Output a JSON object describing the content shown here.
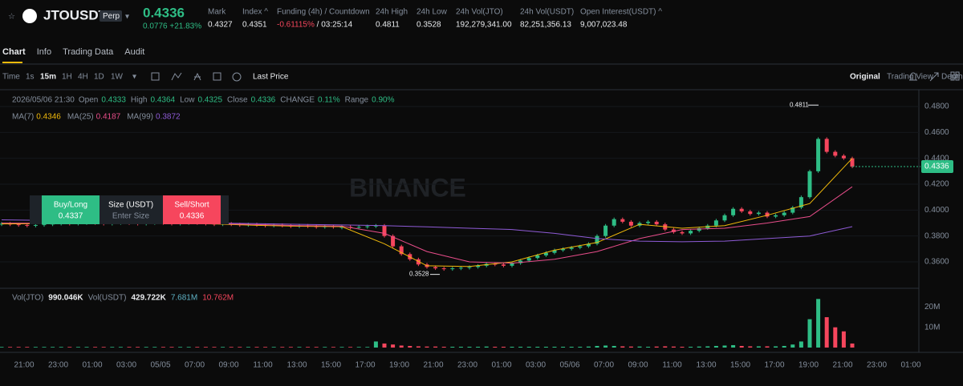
{
  "header": {
    "symbol": "JTOUSDT",
    "badge": "Perp",
    "price": "0.4336",
    "change": "0.0776 +21.83%",
    "stats": [
      {
        "label": "Mark",
        "value": "0.4327"
      },
      {
        "label": "Index ^",
        "value": "0.4351"
      },
      {
        "label": "Funding (4h) / Countdown",
        "value": "-0.61115%",
        "extra": " / 03:25:14"
      },
      {
        "label": "24h High",
        "value": "0.4811"
      },
      {
        "label": "24h Low",
        "value": "0.3528"
      },
      {
        "label": "24h Vol(JTO)",
        "value": "192,279,341.00"
      },
      {
        "label": "24h Vol(USDT)",
        "value": "82,251,356.13"
      },
      {
        "label": "Open Interest(USDT) ^",
        "value": "9,007,023.48"
      }
    ]
  },
  "tabs": [
    "Chart",
    "Info",
    "Trading Data",
    "Audit"
  ],
  "toolbar": {
    "intervals": [
      "Time",
      "1s",
      "15m",
      "1H",
      "4H",
      "1D",
      "1W"
    ],
    "price_mode": "Last Price",
    "views": [
      "Original",
      "Trading View",
      "Depth"
    ]
  },
  "ohlc_info": {
    "date": "2026/05/06 21:30",
    "items": [
      [
        "Open",
        "0.4333"
      ],
      [
        "High",
        "0.4364"
      ],
      [
        "Low",
        "0.4325"
      ],
      [
        "Close",
        "0.4336"
      ],
      [
        "CHANGE",
        "0.11%"
      ],
      [
        "Range",
        "0.90%"
      ]
    ]
  },
  "ma_legend": [
    {
      "name": "MA(7)",
      "value": "0.4346",
      "color": "#f0b90b"
    },
    {
      "name": "MA(25)",
      "value": "0.4187",
      "color": "#e84d8a"
    },
    {
      "name": "MA(99)",
      "value": "0.3872",
      "color": "#8e5bd6"
    }
  ],
  "vol_legend": {
    "name": "Vol(JTO)",
    "value": "990.046K",
    "name2": "Vol(USDT)",
    "value2": "429.722K",
    "ma1": "7.681M",
    "ma2": "10.762M"
  },
  "watermark": "BINANCE",
  "order_widget": {
    "buy": "Buy/Long",
    "buy_price": "0.4337",
    "size": "Size (USDT)",
    "size_hint": "Enter Size",
    "sell": "Sell/Short",
    "sell_price": "0.4336"
  },
  "chart": {
    "ylim": [
      0.3458,
      0.488
    ],
    "yticks": [
      {
        "value": 0.48,
        "label": "0.4800"
      },
      {
        "value": 0.46,
        "label": "0.4600"
      },
      {
        "value": 0.44,
        "label": "0.4400"
      },
      {
        "value": 0.42,
        "label": "0.4200"
      },
      {
        "value": 0.4,
        "label": "0.4000"
      },
      {
        "value": 0.38,
        "label": "0.3800"
      },
      {
        "value": 0.36,
        "label": "0.3600"
      }
    ],
    "last_price": "0.4336",
    "high_label": "0.4811",
    "low_label": "0.3528",
    "closes": [
      0.3895,
      0.389,
      0.3885,
      0.388,
      0.3885,
      0.389,
      0.3895,
      0.39,
      0.3895,
      0.39,
      0.3905,
      0.39,
      0.3895,
      0.39,
      0.3905,
      0.39,
      0.3895,
      0.39,
      0.3905,
      0.39,
      0.3895,
      0.39,
      0.3905,
      0.39,
      0.3895,
      0.389,
      0.3895,
      0.389,
      0.3885,
      0.389,
      0.3885,
      0.388,
      0.3885,
      0.388,
      0.3875,
      0.388,
      0.3875,
      0.387,
      0.3875,
      0.387,
      0.387,
      0.3865,
      0.387,
      0.3875,
      0.388,
      0.38,
      0.372,
      0.366,
      0.362,
      0.358,
      0.356,
      0.355,
      0.3545,
      0.355,
      0.3555,
      0.356,
      0.357,
      0.3585,
      0.358,
      0.357,
      0.359,
      0.361,
      0.363,
      0.365,
      0.367,
      0.369,
      0.37,
      0.371,
      0.372,
      0.374,
      0.38,
      0.388,
      0.393,
      0.391,
      0.388,
      0.39,
      0.391,
      0.389,
      0.385,
      0.383,
      0.382,
      0.384,
      0.386,
      0.388,
      0.392,
      0.396,
      0.401,
      0.399,
      0.397,
      0.398,
      0.395,
      0.396,
      0.398,
      0.402,
      0.41,
      0.43,
      0.455,
      0.445,
      0.442,
      0.44,
      0.4336
    ],
    "ma_lines": [
      {
        "color": "#f0b90b",
        "values": [
          0.3893,
          0.3895,
          0.3902,
          0.39,
          0.3897,
          0.3893,
          0.3882,
          0.3875,
          0.3872,
          0.374,
          0.357,
          0.3565,
          0.36,
          0.369,
          0.375,
          0.389,
          0.386,
          0.388,
          0.396,
          0.405,
          0.44
        ]
      },
      {
        "color": "#e84d8a",
        "values": [
          0.39,
          0.3898,
          0.39,
          0.39,
          0.3898,
          0.3895,
          0.3888,
          0.388,
          0.3876,
          0.382,
          0.368,
          0.36,
          0.359,
          0.362,
          0.368,
          0.378,
          0.385,
          0.386,
          0.39,
          0.395,
          0.418
        ]
      },
      {
        "color": "#8e5bd6",
        "values": [
          0.3925,
          0.392,
          0.3915,
          0.391,
          0.3905,
          0.39,
          0.3895,
          0.389,
          0.3885,
          0.388,
          0.387,
          0.386,
          0.385,
          0.382,
          0.378,
          0.376,
          0.3755,
          0.376,
          0.378,
          0.38,
          0.3872
        ]
      }
    ],
    "vol_ylim": [
      0,
      26.5
    ],
    "vol_yticks": [
      {
        "value": 20,
        "label": "20M"
      },
      {
        "value": 10,
        "label": "10M"
      }
    ],
    "volumes": [
      0.3,
      0.3,
      0.3,
      0.3,
      0.3,
      0.3,
      0.3,
      0.3,
      0.3,
      0.3,
      0.3,
      0.3,
      0.3,
      0.3,
      0.3,
      0.3,
      0.3,
      0.3,
      0.3,
      0.3,
      0.3,
      0.3,
      0.3,
      0.3,
      0.3,
      0.3,
      0.3,
      0.3,
      0.3,
      0.3,
      0.3,
      0.3,
      0.3,
      0.3,
      0.3,
      0.3,
      0.3,
      0.3,
      0.3,
      0.3,
      0.3,
      0.3,
      0.3,
      0.3,
      3,
      2,
      1.5,
      1,
      0.8,
      0.6,
      0.5,
      0.5,
      0.4,
      0.4,
      0.4,
      0.4,
      0.4,
      0.5,
      0.4,
      0.4,
      0.4,
      0.4,
      0.4,
      0.4,
      0.4,
      0.4,
      0.4,
      0.4,
      0.4,
      0.5,
      0.8,
      1,
      0.8,
      0.6,
      0.5,
      0.5,
      0.4,
      0.5,
      0.6,
      0.5,
      0.4,
      0.4,
      0.5,
      0.6,
      0.8,
      1,
      1.2,
      0.8,
      0.6,
      0.6,
      0.6,
      0.6,
      0.8,
      1.5,
      3,
      14,
      24,
      15,
      10,
      8,
      2
    ],
    "time_labels": [
      "21:00",
      "23:00",
      "01:00",
      "03:00",
      "05/05",
      "07:00",
      "09:00",
      "11:00",
      "13:00",
      "15:00",
      "17:00",
      "19:00",
      "21:00",
      "23:00",
      "01:00",
      "03:00",
      "05/06",
      "07:00",
      "09:00",
      "11:00",
      "13:00",
      "15:00",
      "17:00",
      "19:00",
      "21:00",
      "23:00",
      "01:00"
    ]
  }
}
